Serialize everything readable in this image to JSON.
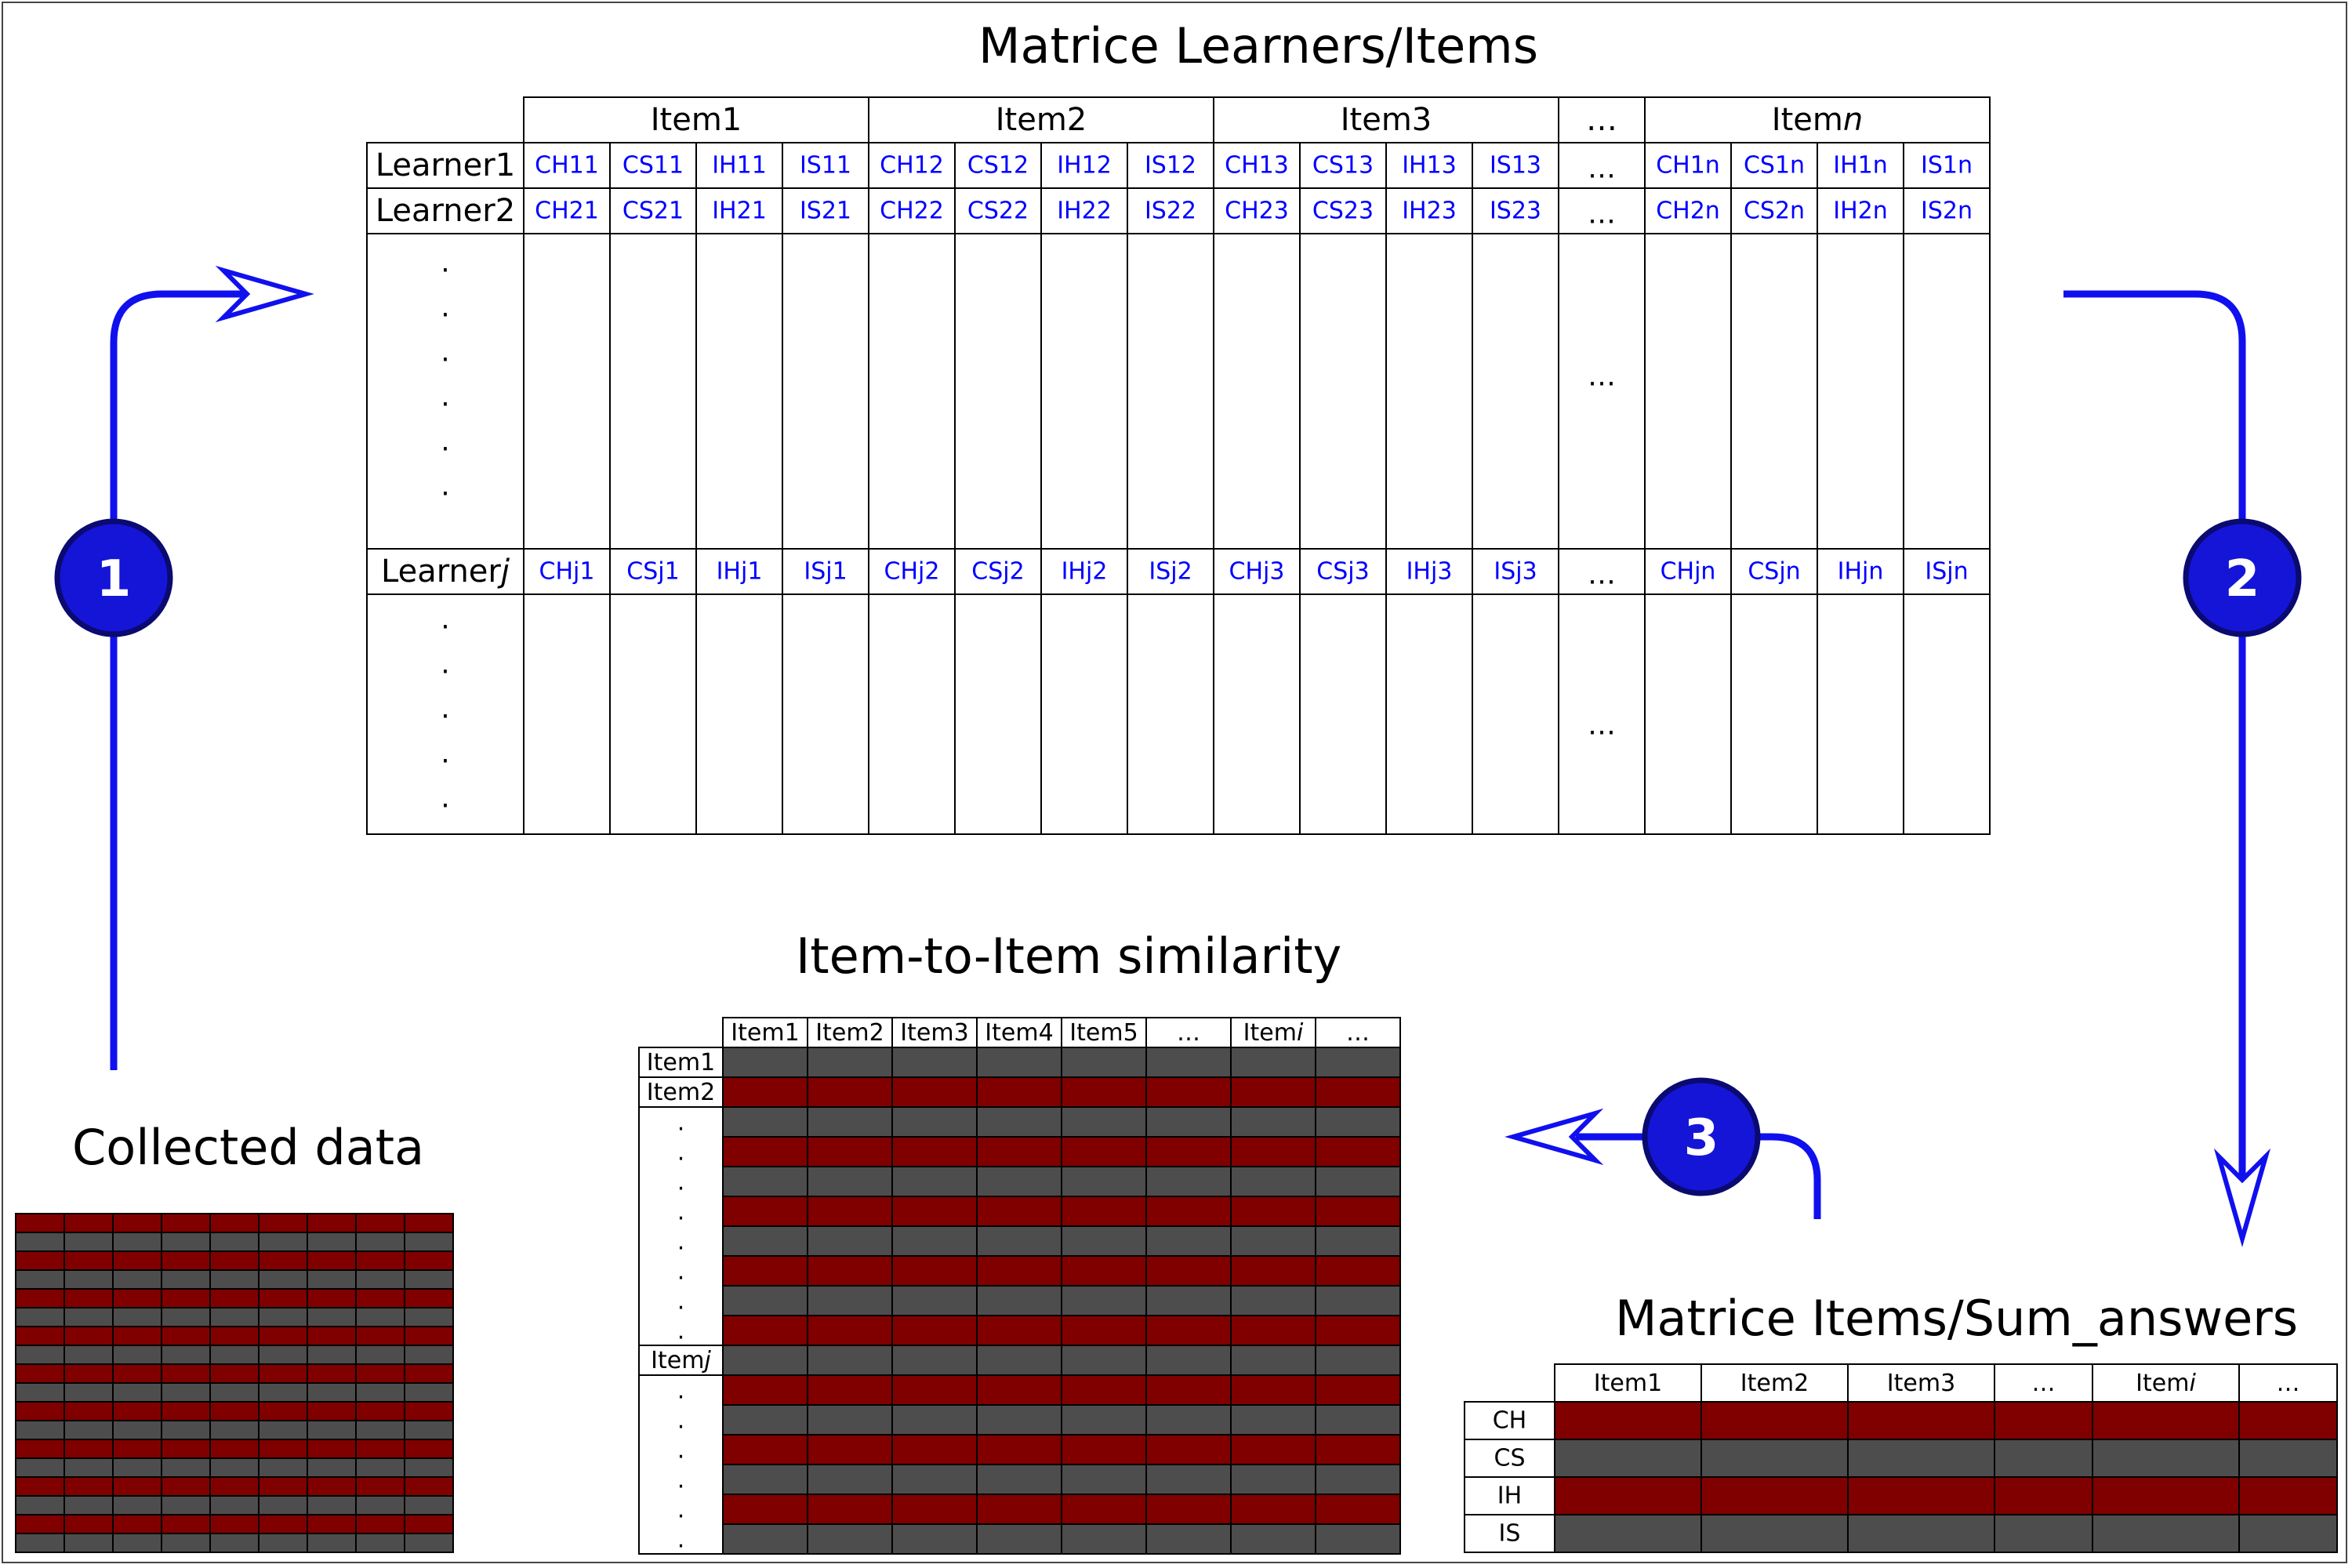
{
  "titles": {
    "matrix_li": "Matrice Learners/Items",
    "similarity": "Item-to-Item similarity",
    "collected": "Collected data",
    "matrix_is": "Matrice Items/Sum_answers"
  },
  "steps": [
    "1",
    "2",
    "3"
  ],
  "colors": {
    "flow": "#1010ee",
    "step_fill": "#1515d8",
    "step_edge": "#0a0a70",
    "cell_text": "#0000ff",
    "red": "#800000",
    "gray": "#4d4d4d"
  },
  "matrix_li": {
    "item_headers": [
      {
        "base": "Item",
        "suffix": "1",
        "italic": false
      },
      {
        "base": "Item",
        "suffix": "2",
        "italic": false
      },
      {
        "base": "Item",
        "suffix": "3",
        "italic": false
      },
      {
        "base": "…",
        "suffix": "",
        "italic": false
      },
      {
        "base": "Item",
        "suffix": "n",
        "italic": true
      }
    ],
    "learners": [
      {
        "base": "Learner",
        "suffix": "1",
        "italic": false
      },
      {
        "base": "Learner",
        "suffix": "2",
        "italic": false
      },
      {
        "base": "Learner",
        "suffix": "j",
        "italic": true
      }
    ],
    "row1": [
      "CH11",
      "CS11",
      "IH11",
      "IS11",
      "CH12",
      "CS12",
      "IH12",
      "IS12",
      "CH13",
      "CS13",
      "IH13",
      "IS13",
      "…",
      "CH1n",
      "CS1n",
      "IH1n",
      "IS1n"
    ],
    "row2": [
      "CH21",
      "CS21",
      "IH21",
      "IS21",
      "CH22",
      "CS22",
      "IH22",
      "IS22",
      "CH23",
      "CS23",
      "IH23",
      "IS23",
      "…",
      "CH2n",
      "CS2n",
      "IH2n",
      "IS2n"
    ],
    "rowj": [
      "CHj1",
      "CSj1",
      "IHj1",
      "ISj1",
      "CHj2",
      "CSj2",
      "IHj2",
      "ISj2",
      "CHj3",
      "CSj3",
      "IHj3",
      "ISj3",
      "…",
      "CHjn",
      "CSjn",
      "IHjn",
      "ISjn"
    ],
    "ellipsis": "…",
    "dot": "."
  },
  "similarity": {
    "col_headers": [
      {
        "base": "Item",
        "suffix": "1",
        "italic": false
      },
      {
        "base": "Item",
        "suffix": "2",
        "italic": false
      },
      {
        "base": "Item",
        "suffix": "3",
        "italic": false
      },
      {
        "base": "Item",
        "suffix": "4",
        "italic": false
      },
      {
        "base": "Item",
        "suffix": "5",
        "italic": false
      },
      {
        "base": "…",
        "suffix": "",
        "italic": false
      },
      {
        "base": "Item",
        "suffix": "i",
        "italic": true
      },
      {
        "base": "…",
        "suffix": "",
        "italic": false
      }
    ],
    "row_headers": [
      {
        "base": "Item",
        "suffix": "1",
        "italic": false
      },
      {
        "base": "Item",
        "suffix": "2",
        "italic": false
      },
      {
        "base": "Item",
        "suffix": "j",
        "italic": true
      }
    ],
    "dot": "."
  },
  "matrix_is": {
    "col_headers": [
      {
        "base": "Item",
        "suffix": "1",
        "italic": false
      },
      {
        "base": "Item",
        "suffix": "2",
        "italic": false
      },
      {
        "base": "Item",
        "suffix": "3",
        "italic": false
      },
      {
        "base": "…",
        "suffix": "",
        "italic": false
      },
      {
        "base": "Item",
        "suffix": "i",
        "italic": true
      },
      {
        "base": "…",
        "suffix": "",
        "italic": false
      }
    ],
    "row_headers": [
      "CH",
      "CS",
      "IH",
      "IS"
    ]
  }
}
